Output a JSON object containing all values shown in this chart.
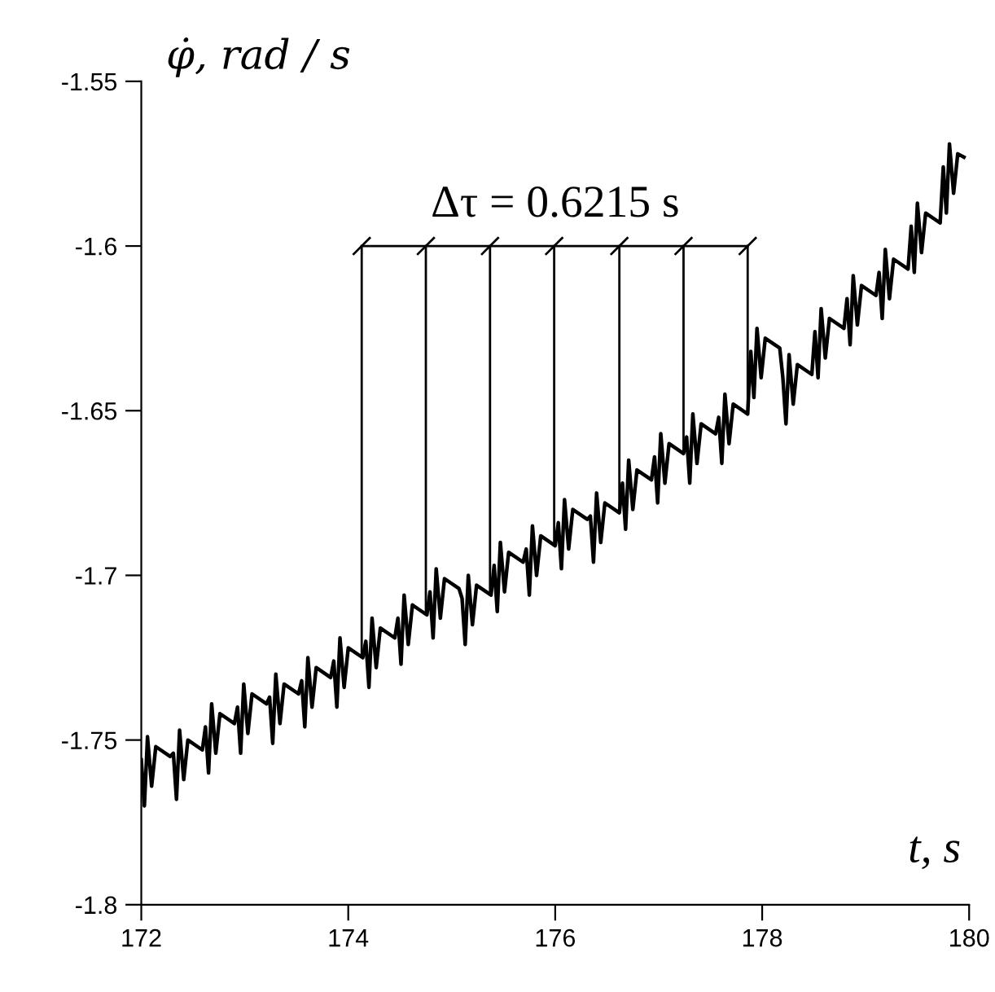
{
  "chart_data": {
    "type": "line",
    "ylabel": "φ̇, rad / s",
    "xlabel": "t, s",
    "xlim": [
      172,
      180
    ],
    "ylim": [
      -1.8,
      -1.55
    ],
    "xticks": [
      172,
      174,
      176,
      178,
      180
    ],
    "yticks": [
      -1.8,
      -1.75,
      -1.7,
      -1.65,
      -1.6,
      -1.55
    ],
    "grid": false,
    "legend": false,
    "line_style": "solid",
    "marker": "none",
    "annotations": [
      {
        "text": "Δτ = 0.6215 s",
        "x": 176,
        "y": -1.6
      }
    ],
    "ref_lines": [
      {
        "axis": "y",
        "value": -1.6,
        "label": null
      },
      {
        "axis": "x",
        "value": 174.13,
        "label": null
      },
      {
        "axis": "x",
        "value": 174.75,
        "label": null
      },
      {
        "axis": "x",
        "value": 175.37,
        "label": null
      },
      {
        "axis": "x",
        "value": 175.99,
        "label": null
      },
      {
        "axis": "x",
        "value": 176.62,
        "label": null
      },
      {
        "axis": "x",
        "value": 177.24,
        "label": null
      },
      {
        "axis": "x",
        "value": 177.86,
        "label": null
      }
    ],
    "series": [
      {
        "color": "#000000",
        "x": [
          172.0,
          172.03,
          172.06,
          172.1,
          172.14,
          172.28,
          172.31,
          172.34,
          172.37,
          172.41,
          172.45,
          172.59,
          172.62,
          172.65,
          172.68,
          172.72,
          172.76,
          172.9,
          172.93,
          172.96,
          172.99,
          173.03,
          173.07,
          173.21,
          173.24,
          173.27,
          173.3,
          173.34,
          173.38,
          173.52,
          173.55,
          173.58,
          173.61,
          173.65,
          173.69,
          173.83,
          173.86,
          173.89,
          173.92,
          173.96,
          174.0,
          174.14,
          174.17,
          174.2,
          174.23,
          174.27,
          174.31,
          174.45,
          174.48,
          174.51,
          174.54,
          174.58,
          174.62,
          174.76,
          174.79,
          174.82,
          174.85,
          174.89,
          174.93,
          175.07,
          175.1,
          175.13,
          175.16,
          175.2,
          175.24,
          175.38,
          175.41,
          175.44,
          175.47,
          175.51,
          175.55,
          175.69,
          175.72,
          175.75,
          175.78,
          175.82,
          175.86,
          176.0,
          176.03,
          176.06,
          176.09,
          176.13,
          176.17,
          176.31,
          176.34,
          176.37,
          176.4,
          176.44,
          176.48,
          176.62,
          176.65,
          176.68,
          176.71,
          176.75,
          176.79,
          176.93,
          176.96,
          176.99,
          177.02,
          177.06,
          177.1,
          177.24,
          177.27,
          177.3,
          177.33,
          177.37,
          177.41,
          177.55,
          177.58,
          177.61,
          177.64,
          177.68,
          177.72,
          177.86,
          177.89,
          177.92,
          177.95,
          177.99,
          178.03,
          178.17,
          178.2,
          178.23,
          178.26,
          178.3,
          178.34,
          178.48,
          178.51,
          178.54,
          178.57,
          178.61,
          178.65,
          178.79,
          178.82,
          178.85,
          178.88,
          178.92,
          178.96,
          179.1,
          179.13,
          179.16,
          179.19,
          179.23,
          179.27,
          179.41,
          179.44,
          179.47,
          179.5,
          179.54,
          179.58,
          179.72,
          179.75,
          179.78,
          179.81,
          179.85,
          179.89,
          179.95
        ],
        "values": [
          -1.756,
          -1.77,
          -1.749,
          -1.764,
          -1.752,
          -1.755,
          -1.754,
          -1.768,
          -1.747,
          -1.762,
          -1.75,
          -1.753,
          -1.746,
          -1.76,
          -1.739,
          -1.754,
          -1.742,
          -1.745,
          -1.74,
          -1.754,
          -1.733,
          -1.748,
          -1.736,
          -1.739,
          -1.737,
          -1.751,
          -1.73,
          -1.745,
          -1.733,
          -1.736,
          -1.732,
          -1.746,
          -1.725,
          -1.74,
          -1.728,
          -1.731,
          -1.726,
          -1.74,
          -1.719,
          -1.734,
          -1.722,
          -1.725,
          -1.72,
          -1.734,
          -1.713,
          -1.728,
          -1.716,
          -1.719,
          -1.713,
          -1.727,
          -1.706,
          -1.721,
          -1.709,
          -1.712,
          -1.705,
          -1.719,
          -1.698,
          -1.713,
          -1.701,
          -1.704,
          -1.707,
          -1.721,
          -1.7,
          -1.715,
          -1.703,
          -1.706,
          -1.697,
          -1.711,
          -1.69,
          -1.705,
          -1.693,
          -1.696,
          -1.692,
          -1.706,
          -1.685,
          -1.7,
          -1.688,
          -1.691,
          -1.684,
          -1.698,
          -1.677,
          -1.692,
          -1.68,
          -1.683,
          -1.682,
          -1.696,
          -1.675,
          -1.69,
          -1.678,
          -1.681,
          -1.672,
          -1.686,
          -1.665,
          -1.68,
          -1.668,
          -1.671,
          -1.664,
          -1.678,
          -1.657,
          -1.672,
          -1.66,
          -1.663,
          -1.658,
          -1.672,
          -1.651,
          -1.666,
          -1.654,
          -1.657,
          -1.652,
          -1.666,
          -1.645,
          -1.66,
          -1.648,
          -1.651,
          -1.632,
          -1.646,
          -1.625,
          -1.64,
          -1.628,
          -1.631,
          -1.64,
          -1.654,
          -1.633,
          -1.648,
          -1.636,
          -1.639,
          -1.626,
          -1.64,
          -1.619,
          -1.634,
          -1.622,
          -1.625,
          -1.616,
          -1.63,
          -1.609,
          -1.624,
          -1.612,
          -1.615,
          -1.608,
          -1.622,
          -1.601,
          -1.616,
          -1.604,
          -1.607,
          -1.594,
          -1.608,
          -1.587,
          -1.602,
          -1.59,
          -1.593,
          -1.576,
          -1.59,
          -1.569,
          -1.584,
          -1.572,
          -1.573
        ]
      }
    ]
  }
}
